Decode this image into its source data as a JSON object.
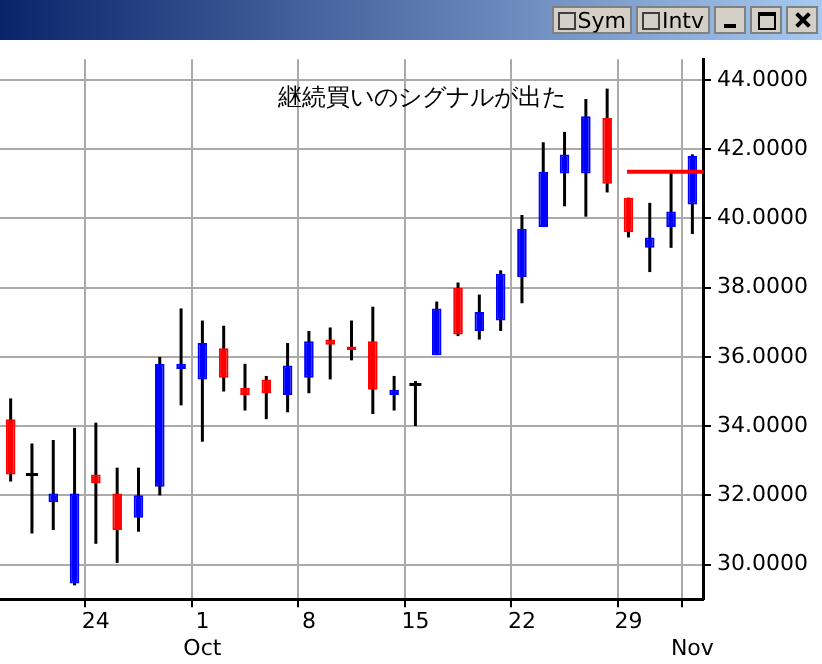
{
  "chart_data": {
    "type": "candlestick",
    "annotations": [
      "継続買いのシグナルが出た",
      "Sym",
      "Intv"
    ],
    "categories": [
      null,
      null,
      null,
      null,
      "24",
      null,
      null,
      null,
      null,
      "1\nOct",
      null,
      null,
      null,
      null,
      "8",
      null,
      null,
      null,
      null,
      "15",
      null,
      null,
      null,
      null,
      "22",
      null,
      null,
      null,
      null,
      "29",
      null,
      null,
      "\nNov"
    ],
    "ohlc": [
      [
        34.2,
        34.8,
        32.4,
        32.6
      ],
      [
        32.6,
        33.5,
        30.9,
        32.6
      ],
      [
        31.8,
        33.6,
        31.0,
        32.05
      ],
      [
        29.45,
        33.95,
        29.4,
        32.05
      ],
      [
        32.6,
        34.1,
        30.6,
        32.35
      ],
      [
        32.05,
        32.8,
        30.05,
        31.0
      ],
      [
        31.35,
        32.8,
        30.95,
        32.0
      ],
      [
        32.25,
        36.0,
        32.0,
        35.8
      ],
      [
        35.65,
        37.4,
        34.6,
        35.8
      ],
      [
        35.35,
        37.05,
        33.55,
        36.4
      ],
      [
        36.25,
        36.9,
        35.0,
        35.4
      ],
      [
        35.1,
        35.8,
        34.45,
        34.9
      ],
      [
        35.35,
        35.45,
        34.2,
        34.95
      ],
      [
        34.9,
        36.4,
        34.4,
        35.75
      ],
      [
        35.4,
        36.75,
        34.95,
        36.45
      ],
      [
        36.5,
        36.85,
        35.35,
        36.35
      ],
      [
        36.3,
        37.05,
        35.9,
        36.2
      ],
      [
        36.45,
        37.45,
        34.35,
        35.05
      ],
      [
        34.9,
        35.45,
        34.45,
        35.05
      ],
      [
        35.2,
        35.3,
        34.0,
        35.2
      ],
      [
        36.05,
        37.6,
        36.05,
        37.4
      ],
      [
        38.0,
        38.15,
        36.6,
        36.65
      ],
      [
        36.75,
        37.8,
        36.5,
        37.3
      ],
      [
        37.05,
        38.5,
        36.75,
        38.4
      ],
      [
        38.3,
        40.1,
        37.55,
        39.7
      ],
      [
        39.75,
        42.2,
        39.75,
        41.35
      ],
      [
        41.3,
        42.5,
        40.35,
        41.85
      ],
      [
        41.3,
        43.45,
        40.05,
        42.95
      ],
      [
        42.9,
        43.75,
        40.75,
        41.0
      ],
      [
        40.6,
        40.6,
        39.45,
        39.6
      ],
      [
        39.15,
        40.45,
        38.45,
        39.45
      ],
      [
        39.75,
        41.4,
        39.15,
        40.2
      ],
      [
        40.4,
        41.85,
        39.55,
        41.8
      ]
    ],
    "colors": [
      "#ff0000",
      "#000000",
      "#0000ff",
      "#0000ff",
      "#ff0000",
      "#ff0000",
      "#0000ff",
      "#0000ff",
      "#0000ff",
      "#0000ff",
      "#ff0000",
      "#ff0000",
      "#ff0000",
      "#0000ff",
      "#0000ff",
      "#ff0000",
      "#ff0000",
      "#ff0000",
      "#0000ff",
      "#000000",
      "#0000ff",
      "#ff0000",
      "#0000ff",
      "#0000ff",
      "#0000ff",
      "#0000ff",
      "#0000ff",
      "#0000ff",
      "#ff0000",
      "#ff0000",
      "#0000ff",
      "#0000ff",
      "#0000ff"
    ],
    "ylim": [
      29,
      44.6
    ],
    "yticks": [
      {
        "value": 30,
        "label": "30.0000"
      },
      {
        "value": 32,
        "label": "32.0000"
      },
      {
        "value": 34,
        "label": "34.0000"
      },
      {
        "value": 36,
        "label": "36.0000"
      },
      {
        "value": 38,
        "label": "38.0000"
      },
      {
        "value": 40,
        "label": "40.0000"
      },
      {
        "value": 42,
        "label": "42.0000"
      },
      {
        "value": 44,
        "label": "44.0000"
      }
    ],
    "ref_lines": [
      {
        "axis": "y",
        "value": 41.35,
        "color": "#ff0000"
      }
    ],
    "grid": true,
    "legend": false
  }
}
